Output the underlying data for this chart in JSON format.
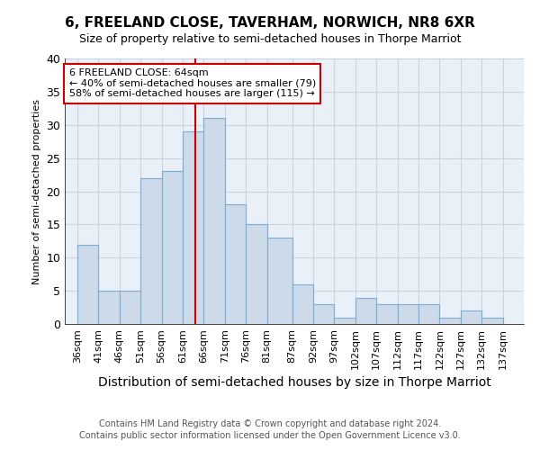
{
  "title": "6, FREELAND CLOSE, TAVERHAM, NORWICH, NR8 6XR",
  "subtitle": "Size of property relative to semi-detached houses in Thorpe Marriot",
  "xlabel": "Distribution of semi-detached houses by size in Thorpe Marriot",
  "ylabel": "Number of semi-detached properties",
  "footer1": "Contains HM Land Registry data © Crown copyright and database right 2024.",
  "footer2": "Contains public sector information licensed under the Open Government Licence v3.0.",
  "bar_lefts": [
    36,
    41,
    46,
    51,
    56,
    61,
    66,
    71,
    76,
    81,
    87,
    92,
    97,
    102,
    107,
    112,
    117,
    122,
    127,
    132
  ],
  "bar_heights": [
    12,
    5,
    5,
    22,
    23,
    29,
    31,
    18,
    15,
    13,
    6,
    3,
    1,
    4,
    3,
    3,
    3,
    1,
    2,
    1
  ],
  "bar_widths": [
    5,
    5,
    5,
    5,
    5,
    5,
    5,
    5,
    5,
    6,
    5,
    5,
    5,
    5,
    5,
    5,
    5,
    5,
    5,
    5
  ],
  "bar_color": "#ccdaea",
  "bar_edgecolor": "#7aadd4",
  "grid_color": "#c8d4e3",
  "vline_x": 64,
  "vline_color": "#cc0000",
  "annotation_text": "6 FREELAND CLOSE: 64sqm\n← 40% of semi-detached houses are smaller (79)\n58% of semi-detached houses are larger (115) →",
  "annotation_box_color": "white",
  "annotation_box_edgecolor": "#cc0000",
  "ylim": [
    0,
    40
  ],
  "xlim": [
    33,
    142
  ],
  "xtick_labels": [
    "36sqm",
    "41sqm",
    "46sqm",
    "51sqm",
    "56sqm",
    "61sqm",
    "66sqm",
    "71sqm",
    "76sqm",
    "81sqm",
    "87sqm",
    "92sqm",
    "97sqm",
    "102sqm",
    "107sqm",
    "112sqm",
    "117sqm",
    "122sqm",
    "127sqm",
    "132sqm",
    "137sqm"
  ],
  "xtick_positions": [
    36,
    41,
    46,
    51,
    56,
    61,
    66,
    71,
    76,
    81,
    87,
    92,
    97,
    102,
    107,
    112,
    117,
    122,
    127,
    132,
    137
  ],
  "background_color": "#eaf0f8",
  "title_fontsize": 11,
  "subtitle_fontsize": 9,
  "ylabel_fontsize": 8,
  "xlabel_fontsize": 10,
  "ytick_fontsize": 9,
  "xtick_fontsize": 8,
  "annotation_fontsize": 8,
  "footer_fontsize": 7
}
